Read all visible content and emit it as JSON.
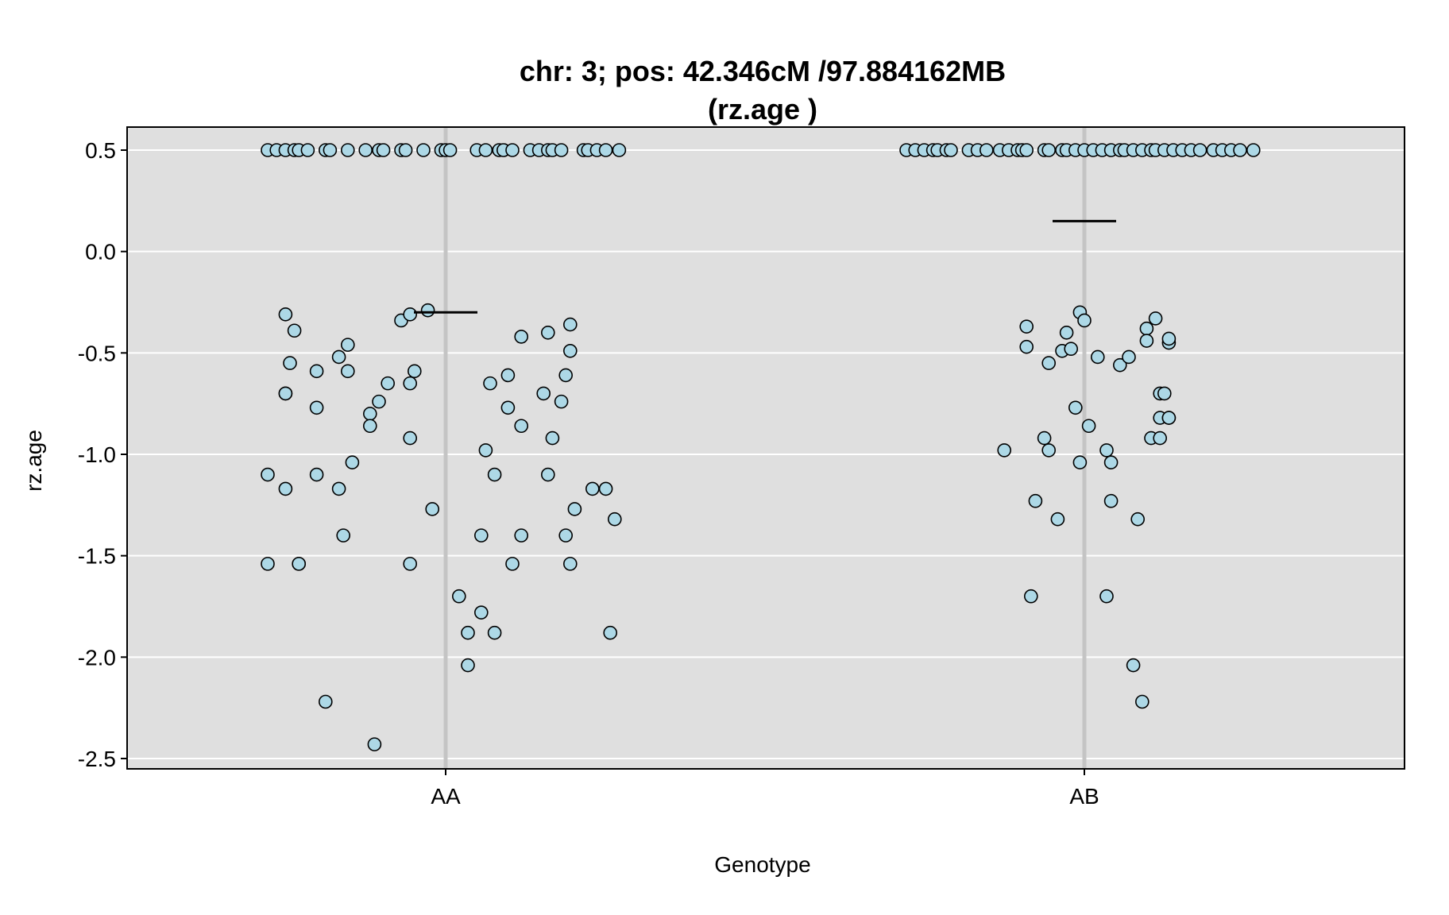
{
  "chart_data": {
    "type": "scatter",
    "title_line1": "chr: 3; pos: 42.346cM /97.884162MB",
    "title_line2": "(rz.age )",
    "xlabel": "Genotype",
    "ylabel": "rz.age",
    "categories": [
      "AA",
      "AB"
    ],
    "ylim": [
      -2.55,
      0.62
    ],
    "yticks": [
      0.5,
      0.0,
      -0.5,
      -1.0,
      -1.5,
      -2.0,
      -2.5
    ],
    "ytick_labels": [
      "0.5",
      "0.0",
      "-0.5",
      "-1.0",
      "-1.5",
      "-2.0",
      "-2.5"
    ],
    "grid": true,
    "background": "#dfdfdf",
    "gridline_color": "#ffffff",
    "category_line_color": "#c4c4c4",
    "point_fill": "#add8e6",
    "point_stroke": "#000000",
    "mean_line_color": "#000000",
    "series": [
      {
        "category": "AA",
        "mean": -0.3,
        "points": [
          {
            "dx": -0.4,
            "y": 0.5
          },
          {
            "dx": -0.38,
            "y": 0.5
          },
          {
            "dx": -0.36,
            "y": 0.5
          },
          {
            "dx": -0.34,
            "y": 0.5
          },
          {
            "dx": -0.33,
            "y": 0.5
          },
          {
            "dx": -0.31,
            "y": 0.5
          },
          {
            "dx": -0.27,
            "y": 0.5
          },
          {
            "dx": -0.26,
            "y": 0.5
          },
          {
            "dx": -0.22,
            "y": 0.5
          },
          {
            "dx": -0.18,
            "y": 0.5
          },
          {
            "dx": -0.15,
            "y": 0.5
          },
          {
            "dx": -0.14,
            "y": 0.5
          },
          {
            "dx": -0.1,
            "y": 0.5
          },
          {
            "dx": -0.09,
            "y": 0.5
          },
          {
            "dx": -0.05,
            "y": 0.5
          },
          {
            "dx": -0.01,
            "y": 0.5
          },
          {
            "dx": 0.0,
            "y": 0.5
          },
          {
            "dx": 0.01,
            "y": 0.5
          },
          {
            "dx": 0.07,
            "y": 0.5
          },
          {
            "dx": 0.09,
            "y": 0.5
          },
          {
            "dx": 0.12,
            "y": 0.5
          },
          {
            "dx": 0.13,
            "y": 0.5
          },
          {
            "dx": 0.15,
            "y": 0.5
          },
          {
            "dx": 0.19,
            "y": 0.5
          },
          {
            "dx": 0.21,
            "y": 0.5
          },
          {
            "dx": 0.23,
            "y": 0.5
          },
          {
            "dx": 0.24,
            "y": 0.5
          },
          {
            "dx": 0.26,
            "y": 0.5
          },
          {
            "dx": 0.31,
            "y": 0.5
          },
          {
            "dx": 0.32,
            "y": 0.5
          },
          {
            "dx": 0.34,
            "y": 0.5
          },
          {
            "dx": 0.36,
            "y": 0.5
          },
          {
            "dx": 0.39,
            "y": 0.5
          },
          {
            "dx": -0.36,
            "y": -0.31
          },
          {
            "dx": -0.34,
            "y": -0.39
          },
          {
            "dx": -0.35,
            "y": -0.55
          },
          {
            "dx": -0.29,
            "y": -0.59
          },
          {
            "dx": -0.24,
            "y": -0.52
          },
          {
            "dx": -0.22,
            "y": -0.46
          },
          {
            "dx": -0.22,
            "y": -0.59
          },
          {
            "dx": -0.36,
            "y": -0.7
          },
          {
            "dx": -0.36,
            "y": -0.7
          },
          {
            "dx": -0.29,
            "y": -0.77
          },
          {
            "dx": -0.17,
            "y": -0.8
          },
          {
            "dx": -0.15,
            "y": -0.74
          },
          {
            "dx": -0.13,
            "y": -0.65
          },
          {
            "dx": -0.17,
            "y": -0.86
          },
          {
            "dx": -0.1,
            "y": -0.34
          },
          {
            "dx": -0.08,
            "y": -0.31
          },
          {
            "dx": -0.04,
            "y": -0.29
          },
          {
            "dx": -0.07,
            "y": -0.59
          },
          {
            "dx": -0.08,
            "y": -0.65
          },
          {
            "dx": -0.08,
            "y": -0.92
          },
          {
            "dx": -0.4,
            "y": -1.1
          },
          {
            "dx": -0.36,
            "y": -1.17
          },
          {
            "dx": -0.29,
            "y": -1.1
          },
          {
            "dx": -0.24,
            "y": -1.17
          },
          {
            "dx": -0.21,
            "y": -1.04
          },
          {
            "dx": -0.23,
            "y": -1.4
          },
          {
            "dx": -0.4,
            "y": -1.54
          },
          {
            "dx": -0.33,
            "y": -1.54
          },
          {
            "dx": -0.33,
            "y": -1.54
          },
          {
            "dx": -0.08,
            "y": -1.54
          },
          {
            "dx": -0.03,
            "y": -1.27
          },
          {
            "dx": -0.27,
            "y": -2.22
          },
          {
            "dx": -0.16,
            "y": -2.43
          },
          {
            "dx": 0.17,
            "y": -0.42
          },
          {
            "dx": 0.23,
            "y": -0.4
          },
          {
            "dx": 0.28,
            "y": -0.36
          },
          {
            "dx": 0.28,
            "y": -0.49
          },
          {
            "dx": 0.27,
            "y": -0.61
          },
          {
            "dx": 0.1,
            "y": -0.65
          },
          {
            "dx": 0.14,
            "y": -0.61
          },
          {
            "dx": 0.22,
            "y": -0.7
          },
          {
            "dx": 0.26,
            "y": -0.74
          },
          {
            "dx": 0.14,
            "y": -0.77
          },
          {
            "dx": 0.17,
            "y": -0.86
          },
          {
            "dx": 0.24,
            "y": -0.92
          },
          {
            "dx": 0.09,
            "y": -0.98
          },
          {
            "dx": 0.11,
            "y": -1.1
          },
          {
            "dx": 0.23,
            "y": -1.1
          },
          {
            "dx": 0.33,
            "y": -1.17
          },
          {
            "dx": 0.36,
            "y": -1.17
          },
          {
            "dx": 0.29,
            "y": -1.27
          },
          {
            "dx": 0.38,
            "y": -1.32
          },
          {
            "dx": 0.08,
            "y": -1.4
          },
          {
            "dx": 0.17,
            "y": -1.4
          },
          {
            "dx": 0.27,
            "y": -1.4
          },
          {
            "dx": 0.15,
            "y": -1.54
          },
          {
            "dx": 0.28,
            "y": -1.54
          },
          {
            "dx": 0.03,
            "y": -1.7
          },
          {
            "dx": 0.08,
            "y": -1.78
          },
          {
            "dx": 0.05,
            "y": -1.88
          },
          {
            "dx": 0.11,
            "y": -1.88
          },
          {
            "dx": 0.37,
            "y": -1.88
          },
          {
            "dx": 0.05,
            "y": -2.04
          }
        ]
      },
      {
        "category": "AB",
        "mean": 0.15,
        "points": [
          {
            "dx": -0.4,
            "y": 0.5
          },
          {
            "dx": -0.38,
            "y": 0.5
          },
          {
            "dx": -0.36,
            "y": 0.5
          },
          {
            "dx": -0.34,
            "y": 0.5
          },
          {
            "dx": -0.33,
            "y": 0.5
          },
          {
            "dx": -0.31,
            "y": 0.5
          },
          {
            "dx": -0.3,
            "y": 0.5
          },
          {
            "dx": -0.26,
            "y": 0.5
          },
          {
            "dx": -0.24,
            "y": 0.5
          },
          {
            "dx": -0.22,
            "y": 0.5
          },
          {
            "dx": -0.19,
            "y": 0.5
          },
          {
            "dx": -0.17,
            "y": 0.5
          },
          {
            "dx": -0.15,
            "y": 0.5
          },
          {
            "dx": -0.14,
            "y": 0.5
          },
          {
            "dx": -0.13,
            "y": 0.5
          },
          {
            "dx": -0.09,
            "y": 0.5
          },
          {
            "dx": -0.08,
            "y": 0.5
          },
          {
            "dx": -0.05,
            "y": 0.5
          },
          {
            "dx": -0.04,
            "y": 0.5
          },
          {
            "dx": -0.02,
            "y": 0.5
          },
          {
            "dx": 0.0,
            "y": 0.5
          },
          {
            "dx": 0.02,
            "y": 0.5
          },
          {
            "dx": 0.04,
            "y": 0.5
          },
          {
            "dx": 0.06,
            "y": 0.5
          },
          {
            "dx": 0.08,
            "y": 0.5
          },
          {
            "dx": 0.09,
            "y": 0.5
          },
          {
            "dx": 0.11,
            "y": 0.5
          },
          {
            "dx": 0.13,
            "y": 0.5
          },
          {
            "dx": 0.15,
            "y": 0.5
          },
          {
            "dx": 0.16,
            "y": 0.5
          },
          {
            "dx": 0.18,
            "y": 0.5
          },
          {
            "dx": 0.2,
            "y": 0.5
          },
          {
            "dx": 0.22,
            "y": 0.5
          },
          {
            "dx": 0.24,
            "y": 0.5
          },
          {
            "dx": 0.26,
            "y": 0.5
          },
          {
            "dx": 0.29,
            "y": 0.5
          },
          {
            "dx": 0.31,
            "y": 0.5
          },
          {
            "dx": 0.33,
            "y": 0.5
          },
          {
            "dx": 0.35,
            "y": 0.5
          },
          {
            "dx": 0.38,
            "y": 0.5
          },
          {
            "dx": -0.13,
            "y": -0.37
          },
          {
            "dx": -0.13,
            "y": -0.47
          },
          {
            "dx": -0.08,
            "y": -0.55
          },
          {
            "dx": -0.05,
            "y": -0.49
          },
          {
            "dx": -0.04,
            "y": -0.4
          },
          {
            "dx": -0.03,
            "y": -0.48
          },
          {
            "dx": -0.01,
            "y": -0.3
          },
          {
            "dx": 0.0,
            "y": -0.34
          },
          {
            "dx": 0.03,
            "y": -0.52
          },
          {
            "dx": 0.08,
            "y": -0.56
          },
          {
            "dx": 0.1,
            "y": -0.52
          },
          {
            "dx": 0.14,
            "y": -0.38
          },
          {
            "dx": 0.16,
            "y": -0.33
          },
          {
            "dx": 0.14,
            "y": -0.44
          },
          {
            "dx": 0.19,
            "y": -0.45
          },
          {
            "dx": 0.19,
            "y": -0.43
          },
          {
            "dx": 0.17,
            "y": -0.7
          },
          {
            "dx": 0.18,
            "y": -0.7
          },
          {
            "dx": -0.02,
            "y": -0.77
          },
          {
            "dx": 0.01,
            "y": -0.86
          },
          {
            "dx": -0.09,
            "y": -0.92
          },
          {
            "dx": -0.08,
            "y": -0.98
          },
          {
            "dx": 0.15,
            "y": -0.92
          },
          {
            "dx": 0.17,
            "y": -0.92
          },
          {
            "dx": 0.17,
            "y": -0.82
          },
          {
            "dx": 0.19,
            "y": -0.82
          },
          {
            "dx": 0.19,
            "y": -0.82
          },
          {
            "dx": -0.18,
            "y": -0.98
          },
          {
            "dx": -0.01,
            "y": -1.04
          },
          {
            "dx": 0.05,
            "y": -0.98
          },
          {
            "dx": 0.06,
            "y": -1.04
          },
          {
            "dx": -0.11,
            "y": -1.23
          },
          {
            "dx": -0.06,
            "y": -1.32
          },
          {
            "dx": 0.06,
            "y": -1.23
          },
          {
            "dx": 0.12,
            "y": -1.32
          },
          {
            "dx": -0.12,
            "y": -1.7
          },
          {
            "dx": 0.05,
            "y": -1.7
          },
          {
            "dx": 0.11,
            "y": -2.04
          },
          {
            "dx": 0.13,
            "y": -2.22
          }
        ]
      }
    ]
  }
}
